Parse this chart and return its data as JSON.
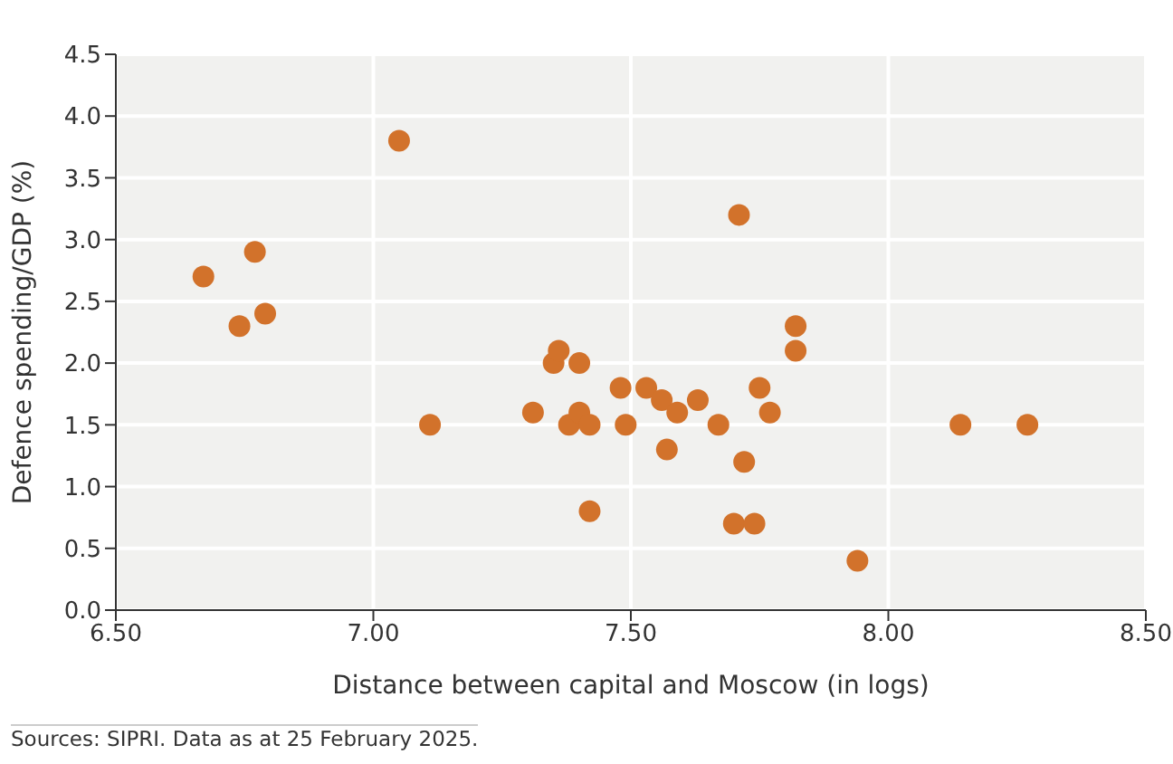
{
  "chart_data": {
    "type": "scatter",
    "xlabel": "Distance between capital and Moscow (in logs)",
    "ylabel": "Defence spending/GDP (%)",
    "annotations": [
      "Sources: SIPRI. Data as at 25 February 2025."
    ],
    "series": [
      {
        "color": "#d2722b",
        "x": [
          6.67,
          6.74,
          6.77,
          6.79,
          7.05,
          7.11,
          7.31,
          7.35,
          7.36,
          7.38,
          7.4,
          7.4,
          7.42,
          7.42,
          7.48,
          7.49,
          7.53,
          7.56,
          7.57,
          7.59,
          7.63,
          7.67,
          7.7,
          7.71,
          7.72,
          7.74,
          7.75,
          7.77,
          7.82,
          7.82,
          7.94,
          8.14,
          8.27
        ],
        "values": [
          2.7,
          2.3,
          2.9,
          2.4,
          3.8,
          1.5,
          1.6,
          2.0,
          2.1,
          1.5,
          1.6,
          2.0,
          1.5,
          0.8,
          1.8,
          1.5,
          1.8,
          1.7,
          1.3,
          1.6,
          1.7,
          1.5,
          0.7,
          3.2,
          1.2,
          0.7,
          1.8,
          1.6,
          2.3,
          2.1,
          0.4,
          1.5,
          1.5
        ]
      }
    ],
    "xlim": [
      6.5,
      8.5
    ],
    "xticks": [
      {
        "value": 6.5,
        "label": "6.50"
      },
      {
        "value": 7.0,
        "label": "7.00"
      },
      {
        "value": 7.5,
        "label": "7.50"
      },
      {
        "value": 8.0,
        "label": "8.00"
      },
      {
        "value": 8.5,
        "label": "8.50"
      }
    ],
    "ylim": [
      0,
      4.5
    ],
    "yticks": [
      {
        "value": 0,
        "label": "0.0"
      },
      {
        "value": 0.5,
        "label": "0.5"
      },
      {
        "value": 1,
        "label": "1.0"
      },
      {
        "value": 1.5,
        "label": "1.5"
      },
      {
        "value": 2,
        "label": "2.0"
      },
      {
        "value": 2.5,
        "label": "2.5"
      },
      {
        "value": 3,
        "label": "3.0"
      },
      {
        "value": 3.5,
        "label": "3.5"
      },
      {
        "value": 4,
        "label": "4.0"
      },
      {
        "value": 4.5,
        "label": "4.5"
      }
    ],
    "grid": true,
    "marker": "circle",
    "legend": false
  }
}
